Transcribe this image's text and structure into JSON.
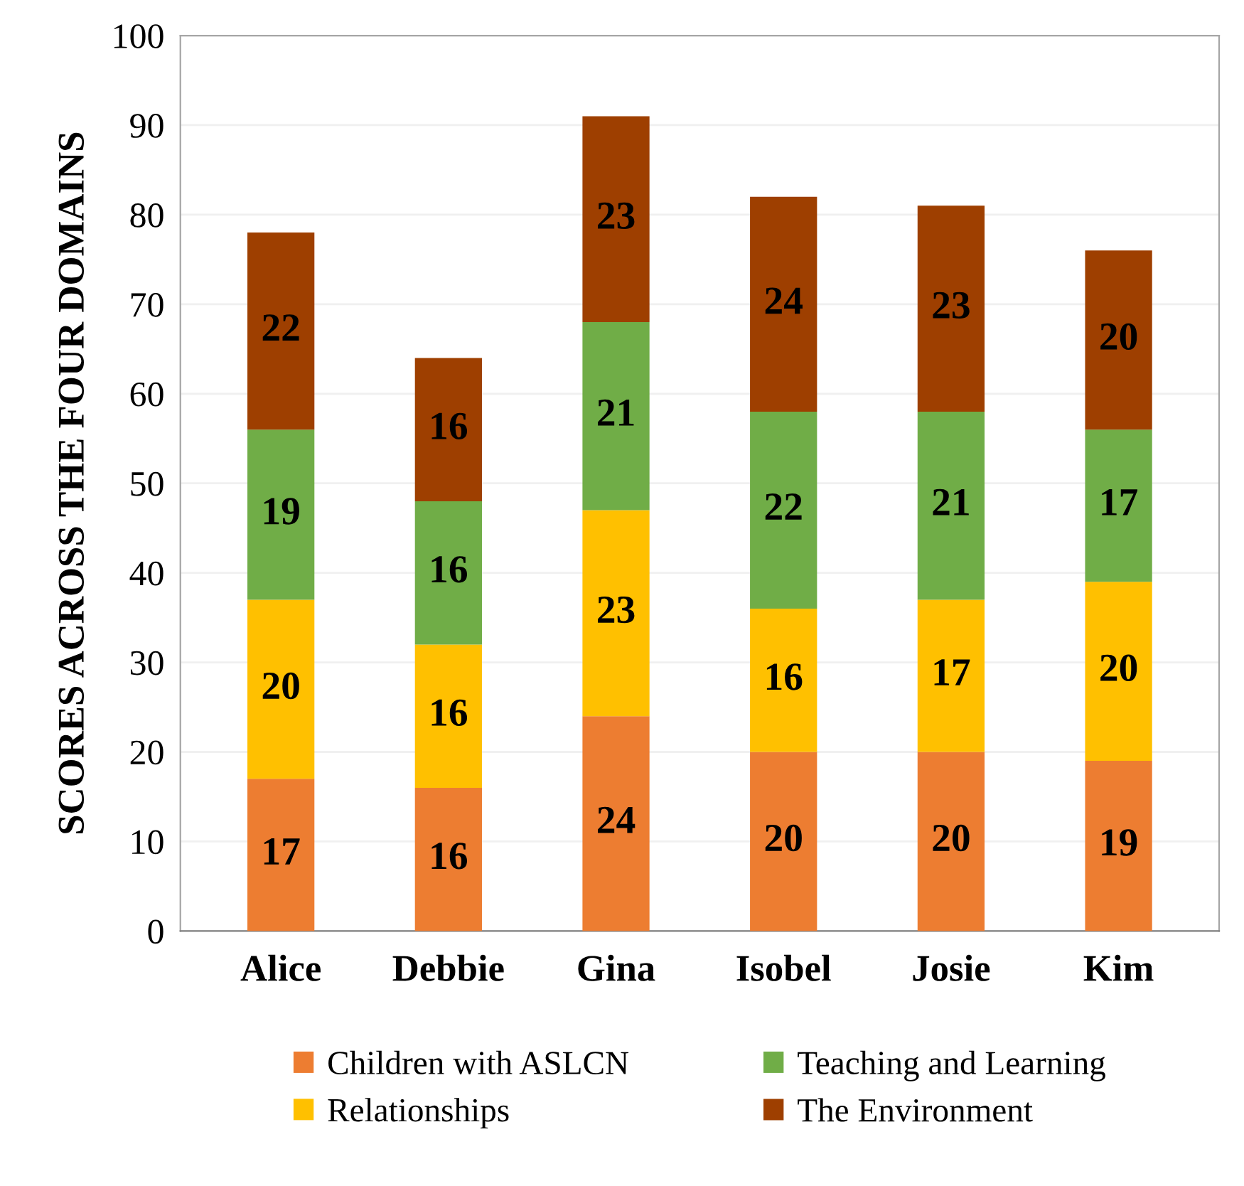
{
  "chart_data": {
    "type": "bar",
    "stacked": true,
    "ylabel": "SCORES ACROSS THE FOUR DOMAINS",
    "categories": [
      "Alice",
      "Debbie",
      "Gina",
      "Isobel",
      "Josie",
      "Kim"
    ],
    "series": [
      {
        "name": "Children with ASLCN",
        "color": "#ed7d31",
        "values": [
          17,
          16,
          24,
          20,
          20,
          19
        ]
      },
      {
        "name": "Relationships",
        "color": "#ffc000",
        "values": [
          20,
          16,
          23,
          16,
          17,
          20
        ]
      },
      {
        "name": "Teaching and Learning",
        "color": "#70ad47",
        "values": [
          19,
          16,
          21,
          22,
          21,
          17
        ]
      },
      {
        "name": "The Environment",
        "color": "#9e3f00",
        "values": [
          22,
          16,
          23,
          24,
          23,
          20
        ]
      }
    ],
    "ylim": [
      0,
      100
    ],
    "yticks": [
      0,
      10,
      20,
      30,
      40,
      50,
      60,
      70,
      80,
      90,
      100
    ],
    "grid": "y",
    "legend": "bottom",
    "data_labels": true
  }
}
